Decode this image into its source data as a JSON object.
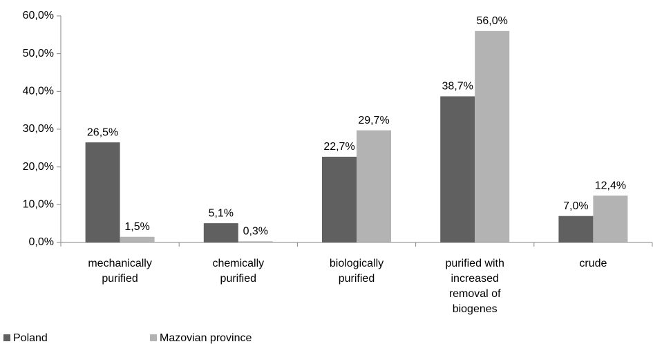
{
  "chart_data": {
    "type": "bar",
    "categories": [
      "mechanically purified",
      "chemically purified",
      "biologically purified",
      "purified with increased removal of biogenes",
      "crude"
    ],
    "series": [
      {
        "name": "Poland",
        "color": "#606060",
        "values": [
          26.5,
          5.1,
          22.7,
          38.7,
          7.0
        ],
        "value_labels": [
          "26,5%",
          "5,1%",
          "22,7%",
          "38,7%",
          "7,0%"
        ]
      },
      {
        "name": "Mazovian province",
        "color": "#b3b3b3",
        "values": [
          1.5,
          0.3,
          29.7,
          56.0,
          12.4
        ],
        "value_labels": [
          "1,5%",
          "0,3%",
          "29,7%",
          "56,0%",
          "12,4%"
        ]
      }
    ],
    "ylim": [
      0,
      60
    ],
    "yticks": [
      {
        "value": 0,
        "label": "0,0%"
      },
      {
        "value": 10,
        "label": "10,0%"
      },
      {
        "value": 20,
        "label": "20,0%"
      },
      {
        "value": 30,
        "label": "30,0%"
      },
      {
        "value": 40,
        "label": "40,0%"
      },
      {
        "value": 50,
        "label": "50,0%"
      },
      {
        "value": 60,
        "label": "60,0%"
      }
    ],
    "legend": "bottom-left"
  }
}
